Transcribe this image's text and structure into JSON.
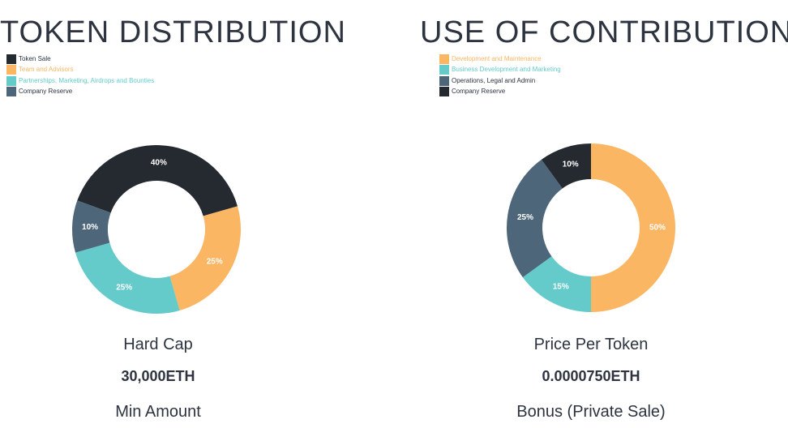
{
  "chart_data": [
    {
      "type": "pie",
      "title": "TOKEN DISTRIBUTION",
      "categories": [
        "Token Sale",
        "Team and Advisors",
        "Partnerships, Marketing, Airdrops and Bounties",
        "Company Reserve"
      ],
      "values": [
        40,
        25,
        25,
        10
      ],
      "data_labels": [
        "40%",
        "25%",
        "25%",
        "10%"
      ],
      "colors": [
        "#252a31",
        "#fbb664",
        "#64cbca",
        "#4e6679"
      ],
      "label_colors": [
        "#ffffff",
        "#ffffff",
        "#ffffff",
        "#ffffff"
      ],
      "start_angle_deg": -70,
      "legend_position": "top-left",
      "donut": true
    },
    {
      "type": "pie",
      "title": "USE OF CONTRIBUTIONS",
      "categories": [
        "Development and Maintenance",
        "Business Development and Marketing",
        "Operations, Legal and Admin",
        "Company Reserve"
      ],
      "values": [
        50,
        15,
        25,
        10
      ],
      "data_labels": [
        "50%",
        "15%",
        "25%",
        "10%"
      ],
      "colors": [
        "#fbb664",
        "#64cbca",
        "#4e6679",
        "#252a31"
      ],
      "label_colors": [
        "#ffffff",
        "#ffffff",
        "#ffffff",
        "#ffffff"
      ],
      "start_angle_deg": 0,
      "legend_position": "top-left",
      "donut": true
    }
  ],
  "left_panel": {
    "stat_label": "Hard Cap",
    "stat_value": "30,000ETH",
    "next_label": "Min Amount"
  },
  "right_panel": {
    "stat_label": "Price Per Token",
    "stat_value": "0.0000750ETH",
    "next_label": "Bonus (Private Sale)"
  }
}
